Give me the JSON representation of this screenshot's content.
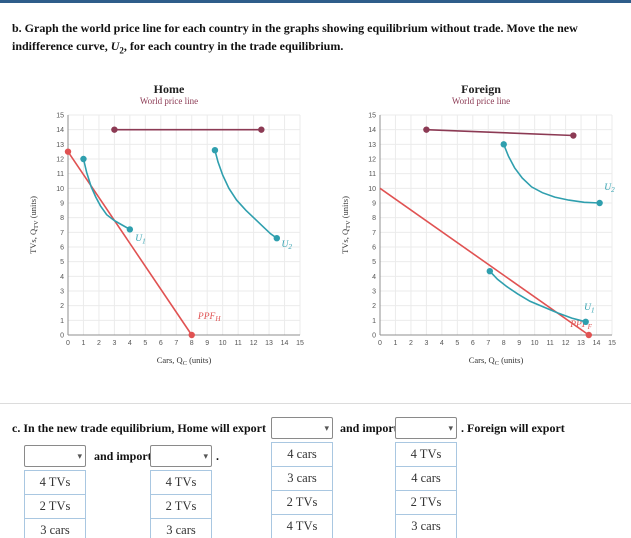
{
  "colors": {
    "accent_top": "#2f5d8a",
    "world_price_line": "#8c3a54",
    "ppf": "#e05252",
    "indifference_curve": "#2f9fae"
  },
  "question_b": {
    "text": "b. Graph the world price line for each country in the graphs showing equilibrium without trade. Move the new indifference curve, *U*_{2}, for each country in the trade equilibrium."
  },
  "chart_data": [
    {
      "type": "line",
      "title": "Home",
      "annotation": "World price line",
      "annotation_color": "#8c3a54",
      "xlabel": "Cars, Q_{C} (units)",
      "ylabel": "TVs, Q_{TV} (units)",
      "xlim": [
        0,
        15
      ],
      "ylim": [
        0,
        15
      ],
      "tick_step": 1,
      "grid": true,
      "series": [
        {
          "name": "world-price-line",
          "color": "#8c3a54",
          "markers": "both",
          "points": [
            [
              3,
              14
            ],
            [
              12.5,
              14
            ]
          ]
        },
        {
          "name": "ppf-home",
          "color": "#e05252",
          "markers": "both",
          "points": [
            [
              0,
              12.5
            ],
            [
              8,
              0
            ]
          ],
          "label": {
            "text": "PPF_{H}",
            "x": 8.4,
            "y": 1.1
          }
        },
        {
          "name": "indifference-u1-home",
          "color": "#2f9fae",
          "markers": "both",
          "points": [
            [
              1,
              12
            ],
            [
              1.2,
              11.1
            ],
            [
              1.5,
              10.1
            ],
            [
              1.8,
              9.4
            ],
            [
              2.1,
              8.8
            ],
            [
              2.5,
              8.2
            ],
            [
              3,
              7.8
            ],
            [
              3.5,
              7.5
            ],
            [
              4,
              7.2
            ]
          ],
          "label": {
            "text": "U_{1}",
            "x": 4.35,
            "y": 6.4
          }
        },
        {
          "name": "indifference-u2-home",
          "color": "#2f9fae",
          "markers": "both",
          "points": [
            [
              9.5,
              12.6
            ],
            [
              9.7,
              11.8
            ],
            [
              10,
              10.9
            ],
            [
              10.4,
              10.0
            ],
            [
              10.9,
              9.2
            ],
            [
              11.5,
              8.5
            ],
            [
              12.1,
              7.9
            ],
            [
              12.7,
              7.3
            ],
            [
              13.1,
              6.9
            ],
            [
              13.5,
              6.6
            ]
          ],
          "label": {
            "text": "U_{2}",
            "x": 13.8,
            "y": 6.0
          }
        }
      ]
    },
    {
      "type": "line",
      "title": "Foreign",
      "annotation": "World price line",
      "annotation_color": "#8c3a54",
      "xlabel": "Cars, Q_{C} (units)",
      "ylabel": "TVs, Q_{TV} (units)",
      "xlim": [
        0,
        15
      ],
      "ylim": [
        0,
        15
      ],
      "tick_step": 1,
      "grid": true,
      "series": [
        {
          "name": "world-price-line",
          "color": "#8c3a54",
          "markers": "both",
          "points": [
            [
              3,
              14
            ],
            [
              12.5,
              13.6
            ]
          ]
        },
        {
          "name": "indifference-u2-foreign",
          "color": "#2f9fae",
          "markers": "both",
          "points": [
            [
              8,
              13
            ],
            [
              8.3,
              12.2
            ],
            [
              8.7,
              11.4
            ],
            [
              9.2,
              10.7
            ],
            [
              9.8,
              10.1
            ],
            [
              10.5,
              9.7
            ],
            [
              11.3,
              9.4
            ],
            [
              12.2,
              9.2
            ],
            [
              13.2,
              9.05
            ],
            [
              14.2,
              9.0
            ]
          ],
          "label": {
            "text": "U_{2}",
            "x": 14.5,
            "y": 9.9
          }
        },
        {
          "name": "ppf-foreign",
          "color": "#e05252",
          "markers": "end",
          "points": [
            [
              0,
              10
            ],
            [
              13.5,
              0
            ]
          ],
          "label": {
            "text": "PPF_{F}",
            "x": 12.3,
            "y": 0.55
          }
        },
        {
          "name": "indifference-u1-foreign",
          "color": "#2f9fae",
          "markers": "both",
          "points": [
            [
              7.1,
              4.35
            ],
            [
              7.6,
              3.8
            ],
            [
              8.2,
              3.3
            ],
            [
              8.9,
              2.8
            ],
            [
              9.7,
              2.3
            ],
            [
              10.6,
              1.9
            ],
            [
              11.5,
              1.5
            ],
            [
              12.4,
              1.15
            ],
            [
              13.3,
              0.9
            ]
          ],
          "label": {
            "text": "U_{1}",
            "x": 13.2,
            "y": 1.7
          }
        }
      ]
    }
  ],
  "section_c": {
    "part1": "c. In the new trade equilibrium, Home will export",
    "part2": "and import",
    "part3": ". Foreign will export",
    "part4": "and import",
    "part5": ".",
    "dropdowns": [
      {
        "name": "home-export",
        "value": "",
        "options": [
          "4 cars",
          "3 cars",
          "2 TVs",
          "4 TVs"
        ]
      },
      {
        "name": "home-import",
        "value": "",
        "options": [
          "4 TVs",
          "4 cars",
          "2 TVs",
          "3 cars"
        ]
      },
      {
        "name": "foreign-export",
        "value": "",
        "options": [
          "4 TVs",
          "2 TVs",
          "3 cars"
        ]
      },
      {
        "name": "foreign-import",
        "value": "",
        "options": [
          "4 TVs",
          "2 TVs",
          "3 cars"
        ]
      }
    ]
  }
}
